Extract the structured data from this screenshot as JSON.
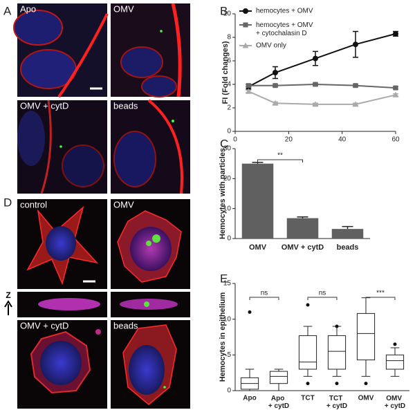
{
  "panel_letters": [
    "A",
    "B",
    "C",
    "D",
    "E"
  ],
  "image_labels_a": [
    "Apo",
    "OMV",
    "OMV + cytD",
    "beads"
  ],
  "image_labels_d": [
    "control",
    "OMV",
    "OMV + cytD",
    "beads"
  ],
  "z_axis_label": "Z",
  "chart_data": [
    {
      "type": "line",
      "ylabel": "FI (Fold changes)",
      "x": [
        5,
        15,
        30,
        45,
        60
      ],
      "xlim": [
        0,
        60
      ],
      "xticks": [
        0,
        20,
        40,
        60
      ],
      "ylim": [
        0,
        10
      ],
      "yticks": [
        0,
        2,
        4,
        6,
        8,
        10
      ],
      "legend": "top-left",
      "series": [
        {
          "name": "hemocytes + OMV",
          "color": "#111111",
          "marker": "circle",
          "values": [
            3.8,
            5.0,
            6.2,
            7.4,
            8.3
          ],
          "errors": [
            0.2,
            0.5,
            0.6,
            1.1,
            0.2
          ]
        },
        {
          "name": "hemocytes + OMV + cytochalasin D",
          "color": "#666666",
          "marker": "square",
          "values": [
            3.9,
            3.9,
            4.0,
            3.9,
            3.7
          ],
          "errors": [
            0.1,
            0.1,
            0.1,
            0.1,
            0.1
          ]
        },
        {
          "name": "OMV only",
          "color": "#aaaaaa",
          "marker": "triangle",
          "values": [
            3.4,
            2.4,
            2.3,
            2.3,
            3.1
          ],
          "errors": [
            0.1,
            0.1,
            0.1,
            0.1,
            0.1
          ]
        }
      ]
    },
    {
      "type": "bar",
      "ylabel": "Hemocytes with particles",
      "categories": [
        "OMV",
        "OMV + cytD",
        "beads"
      ],
      "values": [
        25,
        6.8,
        3.2
      ],
      "errors": [
        0.4,
        0.4,
        0.8
      ],
      "color": "#606060",
      "ylim": [
        0,
        30
      ],
      "yticks": [
        0,
        10,
        20,
        30
      ],
      "significance": [
        {
          "between": [
            0,
            1
          ],
          "label": "**"
        }
      ]
    },
    {
      "type": "box",
      "ylabel": "Hemocytes in epithelium",
      "categories": [
        "Apo",
        "Apo + cytD",
        "TCT",
        "TCT + cytD",
        "OMV",
        "OMV + cytD"
      ],
      "ylim": [
        0,
        15
      ],
      "yticks": [
        0,
        5,
        10,
        15
      ],
      "boxes": [
        {
          "whislo": 0,
          "q1": 0.2,
          "med": 1.0,
          "q3": 1.8,
          "whishi": 3,
          "outliers": [
            11
          ]
        },
        {
          "whislo": 0,
          "q1": 1,
          "med": 2,
          "q3": 2.7,
          "whishi": 3,
          "outliers": []
        },
        {
          "whislo": 2,
          "q1": 3,
          "med": 4,
          "q3": 7.7,
          "whishi": 9,
          "outliers": [
            1,
            12
          ]
        },
        {
          "whislo": 2,
          "q1": 3,
          "med": 5.5,
          "q3": 7.7,
          "whishi": 9,
          "outliers": [
            1,
            9
          ]
        },
        {
          "whislo": 2,
          "q1": 4.3,
          "med": 8,
          "q3": 10.8,
          "whishi": 13,
          "outliers": [
            1
          ]
        },
        {
          "whislo": 2,
          "q1": 3,
          "med": 4.2,
          "q3": 5,
          "whishi": 6,
          "outliers": [
            6.5
          ]
        }
      ],
      "significance": [
        {
          "between": [
            0,
            1
          ],
          "label": "ns"
        },
        {
          "between": [
            2,
            3
          ],
          "label": "ns"
        },
        {
          "between": [
            4,
            5
          ],
          "label": "***"
        }
      ]
    }
  ]
}
